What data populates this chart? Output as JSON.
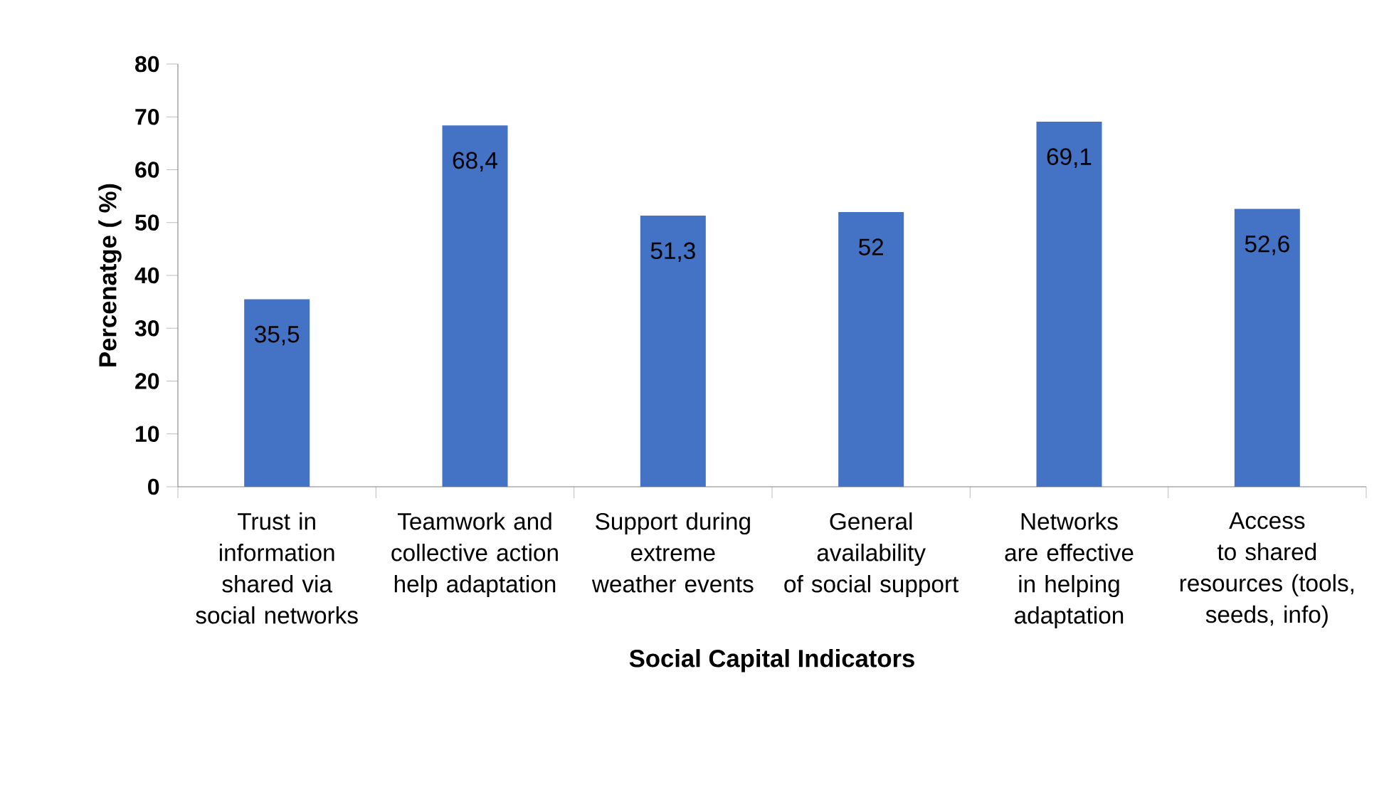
{
  "chart_data": {
    "type": "bar",
    "xlabel": "Social Capital Indicators",
    "ylabel": "Percenatge ( %)",
    "categories": [
      "Trust in information shared via social networks",
      "Teamwork and collective action help adaptation",
      "Support during extreme weather events",
      "General availability of social support",
      "Networks are effective in helping adaptation",
      "Access to shared resources (tools, seeds, info)"
    ],
    "values": [
      35.5,
      68.4,
      51.3,
      52,
      69.1,
      52.6
    ],
    "value_labels": [
      "35,5",
      "68,4",
      "51,3",
      "52",
      "69,1",
      "52,6"
    ],
    "color": "#4472c4",
    "ylim": [
      0,
      80
    ],
    "yticks": [
      0,
      10,
      20,
      30,
      40,
      50,
      60,
      70,
      80
    ],
    "grid": false
  }
}
